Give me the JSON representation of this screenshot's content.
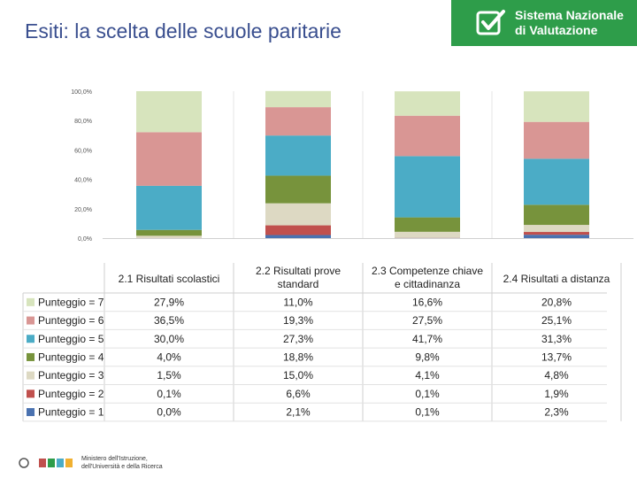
{
  "page": {
    "title": "Esiti: la scelta delle scuole paritarie"
  },
  "badge": {
    "line1": "Sistema Nazionale",
    "line2": "di Valutazione",
    "color": "#2e9d4a"
  },
  "footer": {
    "line1": "Ministero dell'Istruzione,",
    "line2": "dell'Università e della Ricerca"
  },
  "chart_data": {
    "type": "bar",
    "stacked": true,
    "percent": true,
    "categories": [
      "2.1 Risultati scolastici",
      "2.2 Risultati prove standard",
      "2.3 Competenze chiave e cittadinanza",
      "2.4 Risultati a distanza"
    ],
    "category_lines": [
      [
        "2.1 Risultati scolastici"
      ],
      [
        "2.2 Risultati prove",
        "standard"
      ],
      [
        "2.3 Competenze chiave",
        "e cittadinanza"
      ],
      [
        "2.4 Risultati a distanza"
      ]
    ],
    "yticks": [
      "0,0%",
      "20,0%",
      "40,0%",
      "60,0%",
      "80,0%",
      "100,0%"
    ],
    "ylim": [
      0,
      100
    ],
    "series": [
      {
        "name": "Punteggio = 1",
        "color": "#4a72b0",
        "values": [
          0.0,
          2.1,
          0.1,
          2.3
        ],
        "labels": [
          "0,0%",
          "2,1%",
          "0,1%",
          "2,3%"
        ]
      },
      {
        "name": "Punteggio = 2",
        "color": "#c0504d",
        "values": [
          0.1,
          6.6,
          0.1,
          1.9
        ],
        "labels": [
          "0,1%",
          "6,6%",
          "0,1%",
          "1,9%"
        ]
      },
      {
        "name": "Punteggio = 3",
        "color": "#ddd9c3",
        "values": [
          1.5,
          15.0,
          4.1,
          4.8
        ],
        "labels": [
          "1,5%",
          "15,0%",
          "4,1%",
          "4,8%"
        ]
      },
      {
        "name": "Punteggio = 4",
        "color": "#77933c",
        "values": [
          4.0,
          18.8,
          9.8,
          13.7
        ],
        "labels": [
          "4,0%",
          "18,8%",
          "9,8%",
          "13,7%"
        ]
      },
      {
        "name": "Punteggio = 5",
        "color": "#4bacc6",
        "values": [
          30.0,
          27.3,
          41.7,
          31.3
        ],
        "labels": [
          "30,0%",
          "27,3%",
          "41,7%",
          "31,3%"
        ]
      },
      {
        "name": "Punteggio = 6",
        "color": "#d99694",
        "values": [
          36.5,
          19.3,
          27.5,
          25.1
        ],
        "labels": [
          "36,5%",
          "19,3%",
          "27,5%",
          "25,1%"
        ]
      },
      {
        "name": "Punteggio = 7",
        "color": "#d7e4bd",
        "values": [
          27.9,
          11.0,
          16.6,
          20.8
        ],
        "labels": [
          "27,9%",
          "11,0%",
          "16,6%",
          "20,8%"
        ]
      }
    ]
  }
}
